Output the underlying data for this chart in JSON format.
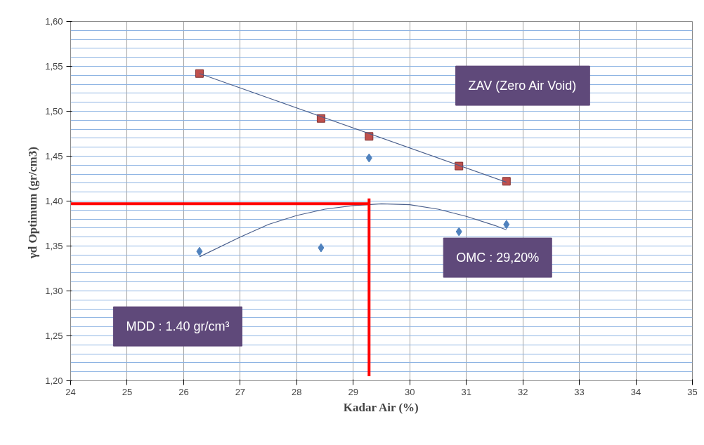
{
  "chart_data": {
    "type": "scatter",
    "xlabel": "Kadar Air (%)",
    "ylabel": "γd Optimum  (gr/cm3)",
    "xlim": [
      24,
      35
    ],
    "xticks": [
      24,
      25,
      26,
      27,
      28,
      29,
      30,
      31,
      32,
      33,
      34,
      35
    ],
    "ylim": [
      1.2,
      1.6
    ],
    "yticks": [
      {
        "value": 1.2,
        "label": "1,20"
      },
      {
        "value": 1.25,
        "label": "1,25"
      },
      {
        "value": 1.3,
        "label": "1,30"
      },
      {
        "value": 1.35,
        "label": "1,35"
      },
      {
        "value": 1.4,
        "label": "1,40"
      },
      {
        "value": 1.45,
        "label": "1,45"
      },
      {
        "value": 1.5,
        "label": "1,50"
      },
      {
        "value": 1.55,
        "label": "1,55"
      },
      {
        "value": 1.6,
        "label": "1,60"
      }
    ],
    "grid": true,
    "series": [
      {
        "marker": "diamond",
        "color": "#4f81bd",
        "x": [
          26.28,
          28.43,
          29.28,
          30.87,
          31.71
        ],
        "values": [
          1.344,
          1.348,
          1.448,
          1.366,
          1.374
        ]
      },
      {
        "marker": "square",
        "color": "#c0504d",
        "x": [
          26.28,
          28.43,
          29.28,
          30.87,
          31.71
        ],
        "values": [
          1.542,
          1.492,
          1.472,
          1.439,
          1.422
        ]
      },
      {
        "type": "line",
        "color": "#4a5f8c",
        "x": [
          26.28,
          31.71
        ],
        "values": [
          1.542,
          1.421
        ]
      },
      {
        "type": "line",
        "color": "#4a5f8c",
        "x": [
          26.28,
          27,
          27.5,
          28,
          28.5,
          29,
          29.5,
          30,
          30.5,
          31,
          31.5,
          31.71
        ],
        "values": [
          1.338,
          1.36,
          1.374,
          1.384,
          1.391,
          1.395,
          1.397,
          1.396,
          1.391,
          1.383,
          1.373,
          1.368
        ]
      },
      {
        "type": "line",
        "color": "#ff0000",
        "x": [
          24,
          29.28
        ],
        "values": [
          1.397,
          1.397
        ]
      },
      {
        "type": "line",
        "color": "#ff0000",
        "x": [
          29.28,
          29.28
        ],
        "values": [
          1.205,
          1.403
        ]
      }
    ],
    "annotations": [
      "ZAV (Zero Air Void)",
      "OMC : 29,20%",
      "MDD : 1.40 gr/cm³"
    ]
  }
}
